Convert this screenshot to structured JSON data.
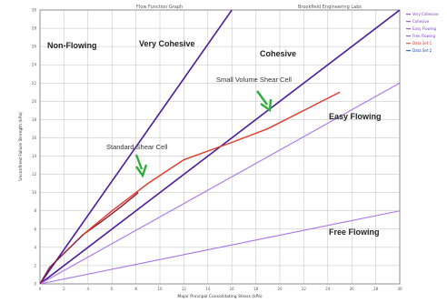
{
  "chart_data": {
    "type": "line",
    "title_left": "Flow Function Graph",
    "title_right": "Brookfield Engineering Labs",
    "xlabel": "Major Principal Consolidating Stress (kPa)",
    "ylabel": "Unconfined Failure Strength (kPa)",
    "xlim": [
      0,
      30
    ],
    "ylim": [
      0,
      30
    ],
    "x_ticks": [
      "0",
      "2",
      "4",
      "6",
      "8",
      "10",
      "12",
      "14",
      "16",
      "18",
      "20",
      "22",
      "24",
      "26",
      "28",
      "30"
    ],
    "y_ticks": [
      "0",
      "2",
      "4",
      "6",
      "8",
      "10",
      "12",
      "14",
      "16",
      "18",
      "20",
      "22",
      "24",
      "26",
      "28",
      "30"
    ],
    "grid": true,
    "regions": [
      "Non-Flowing",
      "Very Cohesive",
      "Cohesive",
      "Easy Flowing",
      "Free Flowing"
    ],
    "boundaries": [
      {
        "name": "Very Cohesive",
        "ff": 1,
        "points": [
          [
            0,
            0
          ],
          [
            16,
            30
          ]
        ]
      },
      {
        "name": "Cohesive",
        "ff": 2,
        "points": [
          [
            0,
            0
          ],
          [
            16,
            16
          ],
          [
            30,
            30
          ]
        ]
      },
      {
        "name": "Easy Flowing",
        "ff": 4,
        "points": [
          [
            0,
            0
          ],
          [
            30,
            22
          ]
        ]
      },
      {
        "name": "Free Flowing",
        "ff": 10,
        "points": [
          [
            0,
            0
          ],
          [
            30,
            8
          ]
        ]
      }
    ],
    "series": [
      {
        "name": "Standard Shear Cell",
        "color": "#8b1a2f",
        "points": [
          [
            0,
            0
          ],
          [
            0.8,
            1.8
          ],
          [
            2.2,
            3.6
          ],
          [
            3.6,
            5.4
          ],
          [
            5.2,
            6.9
          ],
          [
            6.8,
            8.5
          ],
          [
            8.2,
            10
          ]
        ]
      },
      {
        "name": "Small Volume Shear Cell",
        "color": "#e03a2a",
        "points": [
          [
            3.6,
            5.4
          ],
          [
            6,
            8
          ],
          [
            9,
            11
          ],
          [
            12,
            13.6
          ],
          [
            16,
            15.5
          ],
          [
            19,
            17
          ],
          [
            22,
            19
          ],
          [
            25,
            21
          ]
        ]
      }
    ],
    "annotations": [
      {
        "text": "Standard Shear Cell",
        "at": [
          8.2,
          10
        ]
      },
      {
        "text": "Small Volume Shear Cell",
        "at": [
          19,
          17
        ]
      }
    ],
    "legend": {
      "placement": "right",
      "entries": [
        {
          "label": "Very Cohesive",
          "color": "#7b3fcf"
        },
        {
          "label": "Cohesive",
          "color": "#7b3fcf"
        },
        {
          "label": "Easy Flowing",
          "color": "#7b3fcf"
        },
        {
          "label": "Free Flowing",
          "color": "#7b3fcf"
        },
        {
          "label": "Data Set 1",
          "color": "#e03a2a"
        },
        {
          "label": "Data Set 2",
          "color": "#1a3fb0"
        }
      ]
    },
    "colors": {
      "boundary_dark": "#4a1a9a",
      "boundary_light": "#a873e8",
      "arrow": "#2fae3c",
      "grid": "#bdbdbd"
    }
  }
}
